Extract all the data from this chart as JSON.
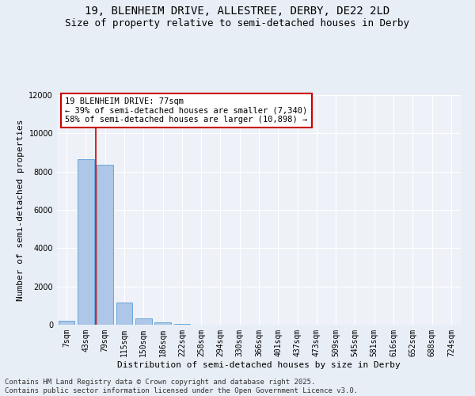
{
  "title_line1": "19, BLENHEIM DRIVE, ALLESTREE, DERBY, DE22 2LD",
  "title_line2": "Size of property relative to semi-detached houses in Derby",
  "xlabel": "Distribution of semi-detached houses by size in Derby",
  "ylabel": "Number of semi-detached properties",
  "categories": [
    "7sqm",
    "43sqm",
    "79sqm",
    "115sqm",
    "150sqm",
    "186sqm",
    "222sqm",
    "258sqm",
    "294sqm",
    "330sqm",
    "366sqm",
    "401sqm",
    "437sqm",
    "473sqm",
    "509sqm",
    "545sqm",
    "581sqm",
    "616sqm",
    "652sqm",
    "688sqm",
    "724sqm"
  ],
  "bar_values": [
    200,
    8650,
    8350,
    1150,
    350,
    120,
    50,
    0,
    0,
    0,
    0,
    0,
    0,
    0,
    0,
    0,
    0,
    0,
    0,
    0,
    0
  ],
  "bar_color": "#aec6e8",
  "bar_edge_color": "#5a9fd4",
  "vline_x": 1.5,
  "vline_color": "#cc0000",
  "annotation_title": "19 BLENHEIM DRIVE: 77sqm",
  "annotation_line1": "← 39% of semi-detached houses are smaller (7,340)",
  "annotation_line2": "58% of semi-detached houses are larger (10,898) →",
  "annotation_box_color": "#ffffff",
  "annotation_box_edge": "#cc0000",
  "ylim": [
    0,
    12000
  ],
  "yticks": [
    0,
    2000,
    4000,
    6000,
    8000,
    10000,
    12000
  ],
  "bg_color": "#e8eef5",
  "plot_bg_color": "#eef2f8",
  "footer_line1": "Contains HM Land Registry data © Crown copyright and database right 2025.",
  "footer_line2": "Contains public sector information licensed under the Open Government Licence v3.0.",
  "title_fontsize": 10,
  "subtitle_fontsize": 9,
  "axis_label_fontsize": 8,
  "tick_fontsize": 7,
  "annotation_fontsize": 7.5,
  "footer_fontsize": 6.5
}
